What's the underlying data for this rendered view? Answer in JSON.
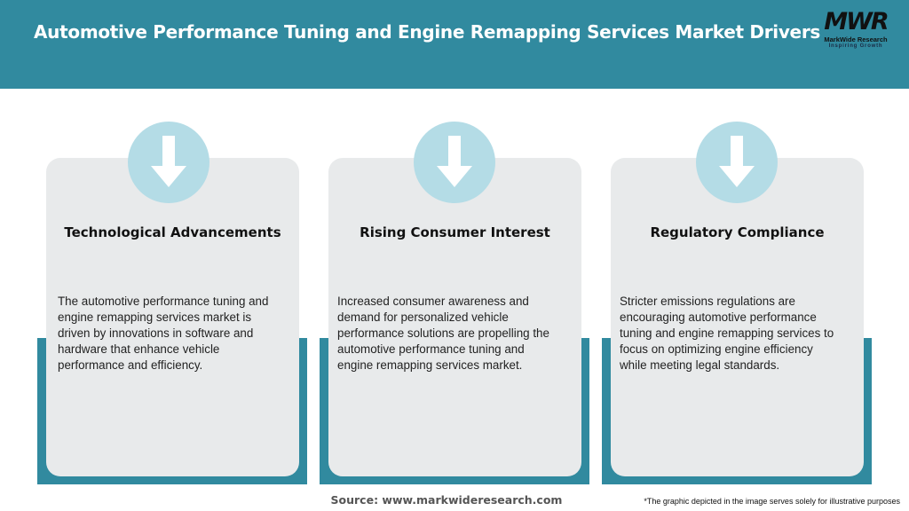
{
  "header": {
    "title": "Automotive Performance Tuning and Engine Remapping Services Market Drivers"
  },
  "logo": {
    "mark": "MWR",
    "name": "MarkWide Research",
    "tagline": "Inspiring Growth"
  },
  "colors": {
    "header": "#318a9f",
    "card": "#e8eaeb",
    "circle": "#b4dce6"
  },
  "cards": [
    {
      "icon": "arrow-down-icon",
      "title": "Technological Advancements",
      "text": "The automotive performance tuning and engine remapping services market is driven by innovations in software and hardware that enhance vehicle performance and efficiency."
    },
    {
      "icon": "arrow-down-icon",
      "title": "Rising Consumer Interest",
      "text": "Increased consumer awareness and demand for personalized vehicle performance solutions are propelling the automotive performance tuning and engine remapping services market."
    },
    {
      "icon": "arrow-down-icon",
      "title": "Regulatory Compliance",
      "text": "Stricter emissions regulations are encouraging automotive performance tuning and engine remapping services to focus on optimizing engine efficiency while meeting legal standards."
    }
  ],
  "footer": {
    "source": "Source: www.markwideresearch.com",
    "note": "*The graphic depicted in the image serves solely for illustrative purposes"
  }
}
